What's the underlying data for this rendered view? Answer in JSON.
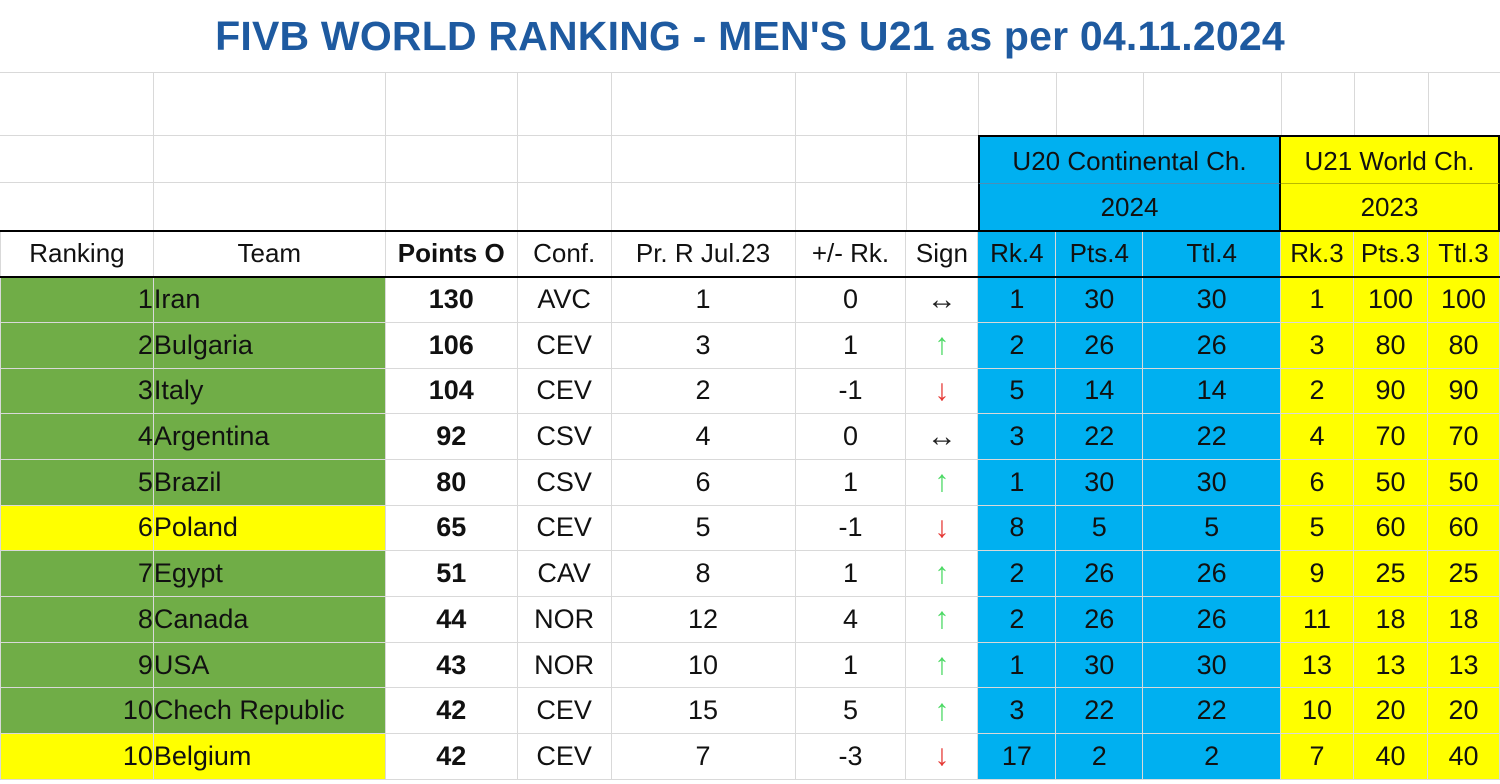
{
  "title": "FIVB WORLD RANKING - MEN'S U21  as per 04.11.2024",
  "groups": {
    "u20": {
      "name": "U20 Continental Ch.",
      "year": "2024",
      "color": "#00b0f0"
    },
    "u21": {
      "name": "U21 World Ch.",
      "year": "2023",
      "color": "#ffff00"
    }
  },
  "columns": [
    "Ranking",
    "Team",
    "Points O",
    "Conf.",
    "Pr. R Jul.23",
    "+/- Rk.",
    "Sign",
    "Rk.4",
    "Pts.4",
    "Ttl.4",
    "Rk.3",
    "Pts.3",
    "Ttl.3"
  ],
  "rows": [
    {
      "rank": "1",
      "team": "Iran",
      "points": "130",
      "conf": "AVC",
      "prev": "1",
      "diff": "0",
      "sign": "same",
      "rk4": "1",
      "pts4": "30",
      "ttl4": "30",
      "rk3": "1",
      "pts3": "100",
      "ttl3": "100",
      "highlight": "green"
    },
    {
      "rank": "2",
      "team": "Bulgaria",
      "points": "106",
      "conf": "CEV",
      "prev": "3",
      "diff": "1",
      "sign": "up",
      "rk4": "2",
      "pts4": "26",
      "ttl4": "26",
      "rk3": "3",
      "pts3": "80",
      "ttl3": "80",
      "highlight": "green"
    },
    {
      "rank": "3",
      "team": "Italy",
      "points": "104",
      "conf": "CEV",
      "prev": "2",
      "diff": "-1",
      "sign": "down",
      "rk4": "5",
      "pts4": "14",
      "ttl4": "14",
      "rk3": "2",
      "pts3": "90",
      "ttl3": "90",
      "highlight": "green"
    },
    {
      "rank": "4",
      "team": "Argentina",
      "points": "92",
      "conf": "CSV",
      "prev": "4",
      "diff": "0",
      "sign": "same",
      "rk4": "3",
      "pts4": "22",
      "ttl4": "22",
      "rk3": "4",
      "pts3": "70",
      "ttl3": "70",
      "highlight": "green"
    },
    {
      "rank": "5",
      "team": "Brazil",
      "points": "80",
      "conf": "CSV",
      "prev": "6",
      "diff": "1",
      "sign": "up",
      "rk4": "1",
      "pts4": "30",
      "ttl4": "30",
      "rk3": "6",
      "pts3": "50",
      "ttl3": "50",
      "highlight": "green"
    },
    {
      "rank": "6",
      "team": "Poland",
      "points": "65",
      "conf": "CEV",
      "prev": "5",
      "diff": "-1",
      "sign": "down",
      "rk4": "8",
      "pts4": "5",
      "ttl4": "5",
      "rk3": "5",
      "pts3": "60",
      "ttl3": "60",
      "highlight": "yellow"
    },
    {
      "rank": "7",
      "team": "Egypt",
      "points": "51",
      "conf": "CAV",
      "prev": "8",
      "diff": "1",
      "sign": "up",
      "rk4": "2",
      "pts4": "26",
      "ttl4": "26",
      "rk3": "9",
      "pts3": "25",
      "ttl3": "25",
      "highlight": "green"
    },
    {
      "rank": "8",
      "team": "Canada",
      "points": "44",
      "conf": "NOR",
      "prev": "12",
      "diff": "4",
      "sign": "up",
      "rk4": "2",
      "pts4": "26",
      "ttl4": "26",
      "rk3": "11",
      "pts3": "18",
      "ttl3": "18",
      "highlight": "green"
    },
    {
      "rank": "9",
      "team": "USA",
      "points": "43",
      "conf": "NOR",
      "prev": "10",
      "diff": "1",
      "sign": "up",
      "rk4": "1",
      "pts4": "30",
      "ttl4": "30",
      "rk3": "13",
      "pts3": "13",
      "ttl3": "13",
      "highlight": "green"
    },
    {
      "rank": "10",
      "team": "Chech Republic",
      "points": "42",
      "conf": "CEV",
      "prev": "15",
      "diff": "5",
      "sign": "up",
      "rk4": "3",
      "pts4": "22",
      "ttl4": "22",
      "rk3": "10",
      "pts3": "20",
      "ttl3": "20",
      "highlight": "green"
    },
    {
      "rank": "10",
      "team": "Belgium",
      "points": "42",
      "conf": "CEV",
      "prev": "7",
      "diff": "-3",
      "sign": "down",
      "rk4": "17",
      "pts4": "2",
      "ttl4": "2",
      "rk3": "7",
      "pts3": "40",
      "ttl3": "40",
      "highlight": "yellow"
    }
  ]
}
